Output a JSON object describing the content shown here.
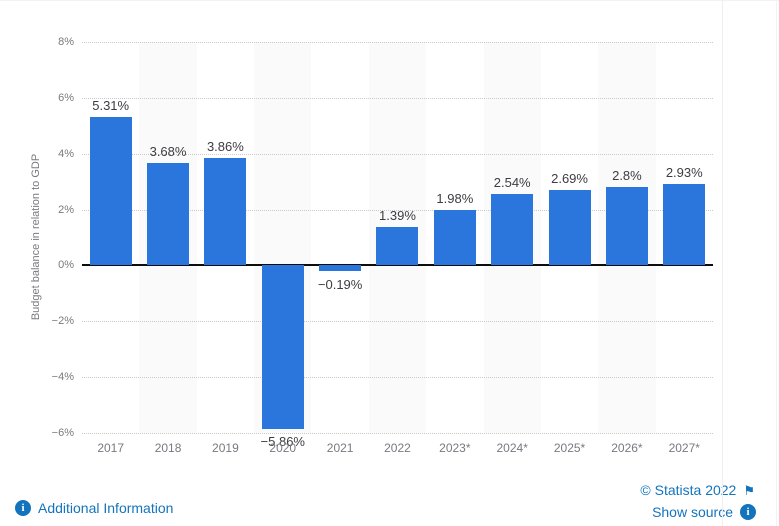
{
  "chart_data": {
    "type": "bar",
    "categories": [
      "2017",
      "2018",
      "2019",
      "2020",
      "2021",
      "2022",
      "2023*",
      "2024*",
      "2025*",
      "2026*",
      "2027*"
    ],
    "values": [
      5.31,
      3.68,
      3.86,
      -5.86,
      -0.19,
      1.39,
      1.98,
      2.54,
      2.69,
      2.8,
      2.93
    ],
    "value_labels": [
      "5.31%",
      "3.68%",
      "3.86%",
      "−5.86%",
      "−0.19%",
      "1.39%",
      "1.98%",
      "2.54%",
      "2.69%",
      "2.8%",
      "2.93%"
    ],
    "title": "",
    "xlabel": "",
    "ylabel": "Budget balance in relation to GDP",
    "ylim": [
      -6,
      8
    ],
    "yticks": [
      8,
      6,
      4,
      2,
      0,
      -2,
      -4,
      -6
    ],
    "ytick_labels": [
      "8%",
      "6%",
      "4%",
      "2%",
      "0%",
      "−2%",
      "−4%",
      "−6%"
    ],
    "grid": "horizontal-dotted",
    "zero_line": true,
    "striped_column_indices": [
      1,
      3,
      5,
      7,
      9
    ],
    "bar_color": "#2b76dc",
    "stripe_color": "#fafafa",
    "label_color": "#3c3c42",
    "axis_text_color": "#797981",
    "legend": "none"
  },
  "footer": {
    "additional_info_label": "Additional Information",
    "copyright_label": "© Statista 2022",
    "show_source_label": "Show source",
    "link_color": "#1374bd"
  },
  "icons": {
    "info_glyph": "i",
    "flag_glyph": "⚑"
  }
}
